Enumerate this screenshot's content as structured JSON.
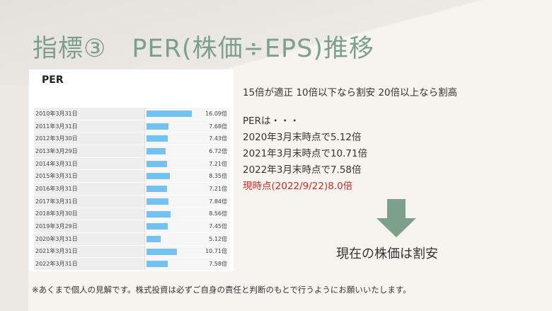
{
  "slide": {
    "title": "指標③　PER(株価÷EPS)推移",
    "panel_title": "PER",
    "rule_text": "15倍が適正 10倍以下なら割安 20倍以上なら割高",
    "info_lines": [
      "PERは・・・",
      "2020年3月末時点で5.12倍",
      "2021年3月末時点で10.71倍",
      "2022年3月末時点で7.58倍"
    ],
    "current_line": "現時点(2022/9/22)8.0倍",
    "conclusion": "現在の株価は割安",
    "disclaimer": "※あくまで個人の見解です。株式投資は必ずご自身の責任と判断のもとで行うようにお願いいたします。",
    "colors": {
      "title": "#7da08a",
      "arrow": "#7da08a",
      "bar": "#72c2f2",
      "highlight": "#cc2b2b"
    },
    "icons": {
      "arrow": "down-arrow-icon"
    }
  },
  "chart_data": {
    "type": "bar",
    "title": "PER",
    "orientation": "horizontal",
    "unit": "倍",
    "categories": [
      "2010年3月31日",
      "2011年3月31日",
      "2012年3月30日",
      "2013年3月29日",
      "2014年3月31日",
      "2015年3月31日",
      "2016年3月31日",
      "2017年3月31日",
      "2018年3月30日",
      "2019年3月29日",
      "2020年3月31日",
      "2021年3月31日",
      "2022年3月31日"
    ],
    "values": [
      16.09,
      7.68,
      7.43,
      6.72,
      7.21,
      8.35,
      7.21,
      7.84,
      8.56,
      7.45,
      5.12,
      10.71,
      7.58
    ],
    "value_labels": [
      "16.09倍",
      "7.68倍",
      "7.43倍",
      "6.72倍",
      "7.21倍",
      "8.35倍",
      "7.21倍",
      "7.84倍",
      "8.56倍",
      "7.45倍",
      "5.12倍",
      "10.71倍",
      "7.58倍"
    ],
    "xlim": [
      0,
      16.09
    ]
  }
}
